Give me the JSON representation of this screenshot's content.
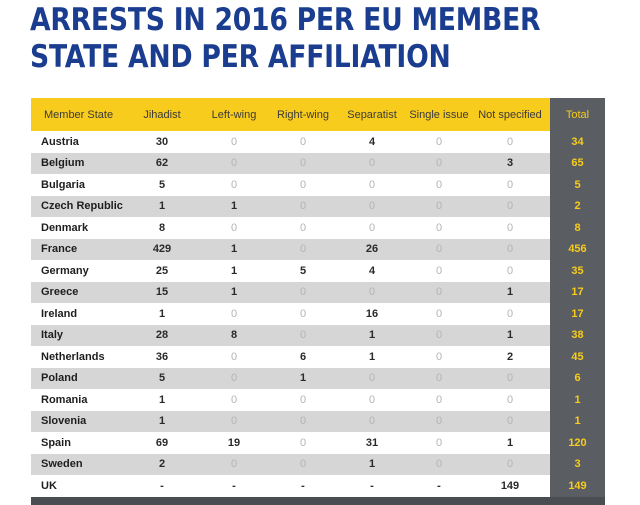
{
  "title": {
    "line1": "ARRESTS IN 2016 PER EU MEMBER",
    "line2": "STATE AND PER AFFILIATION"
  },
  "colors": {
    "title": "#1b3d8f",
    "header_bg": "#f7cc1d",
    "total_bg": "#5a5d62",
    "total_text": "#f7cc1d",
    "stripe": "#d6d6d6",
    "zero_text": "#b4b4b4"
  },
  "table": {
    "headers": [
      "Member State",
      "Jihadist",
      "Left-wing",
      "Right-wing",
      "Separatist",
      "Single issue",
      "Not specified",
      "Total"
    ],
    "rows": [
      {
        "state": "Austria",
        "jihadist": "30",
        "left": "0",
        "right": "0",
        "separatist": "4",
        "single": "0",
        "unspecified": "0",
        "total": "34"
      },
      {
        "state": "Belgium",
        "jihadist": "62",
        "left": "0",
        "right": "0",
        "separatist": "0",
        "single": "0",
        "unspecified": "3",
        "total": "65"
      },
      {
        "state": "Bulgaria",
        "jihadist": "5",
        "left": "0",
        "right": "0",
        "separatist": "0",
        "single": "0",
        "unspecified": "0",
        "total": "5"
      },
      {
        "state": "Czech Republic",
        "jihadist": "1",
        "left": "1",
        "right": "0",
        "separatist": "0",
        "single": "0",
        "unspecified": "0",
        "total": "2"
      },
      {
        "state": "Denmark",
        "jihadist": "8",
        "left": "0",
        "right": "0",
        "separatist": "0",
        "single": "0",
        "unspecified": "0",
        "total": "8"
      },
      {
        "state": "France",
        "jihadist": "429",
        "left": "1",
        "right": "0",
        "separatist": "26",
        "single": "0",
        "unspecified": "0",
        "total": "456"
      },
      {
        "state": "Germany",
        "jihadist": "25",
        "left": "1",
        "right": "5",
        "separatist": "4",
        "single": "0",
        "unspecified": "0",
        "total": "35"
      },
      {
        "state": "Greece",
        "jihadist": "15",
        "left": "1",
        "right": "0",
        "separatist": "0",
        "single": "0",
        "unspecified": "1",
        "total": "17"
      },
      {
        "state": "Ireland",
        "jihadist": "1",
        "left": "0",
        "right": "0",
        "separatist": "16",
        "single": "0",
        "unspecified": "0",
        "total": "17"
      },
      {
        "state": "Italy",
        "jihadist": "28",
        "left": "8",
        "right": "0",
        "separatist": "1",
        "single": "0",
        "unspecified": "1",
        "total": "38"
      },
      {
        "state": "Netherlands",
        "jihadist": "36",
        "left": "0",
        "right": "6",
        "separatist": "1",
        "single": "0",
        "unspecified": "2",
        "total": "45"
      },
      {
        "state": "Poland",
        "jihadist": "5",
        "left": "0",
        "right": "1",
        "separatist": "0",
        "single": "0",
        "unspecified": "0",
        "total": "6"
      },
      {
        "state": "Romania",
        "jihadist": "1",
        "left": "0",
        "right": "0",
        "separatist": "0",
        "single": "0",
        "unspecified": "0",
        "total": "1"
      },
      {
        "state": "Slovenia",
        "jihadist": "1",
        "left": "0",
        "right": "0",
        "separatist": "0",
        "single": "0",
        "unspecified": "0",
        "total": "1"
      },
      {
        "state": "Spain",
        "jihadist": "69",
        "left": "19",
        "right": "0",
        "separatist": "31",
        "single": "0",
        "unspecified": "1",
        "total": "120"
      },
      {
        "state": "Sweden",
        "jihadist": "2",
        "left": "0",
        "right": "0",
        "separatist": "1",
        "single": "0",
        "unspecified": "0",
        "total": "3"
      },
      {
        "state": "UK",
        "jihadist": "-",
        "left": "-",
        "right": "-",
        "separatist": "-",
        "single": "-",
        "unspecified": "149",
        "total": "149"
      }
    ]
  }
}
